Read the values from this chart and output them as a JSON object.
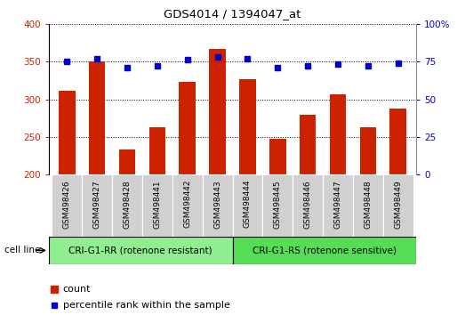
{
  "title": "GDS4014 / 1394047_at",
  "samples": [
    "GSM498426",
    "GSM498427",
    "GSM498428",
    "GSM498441",
    "GSM498442",
    "GSM498443",
    "GSM498444",
    "GSM498445",
    "GSM498446",
    "GSM498447",
    "GSM498448",
    "GSM498449"
  ],
  "counts": [
    311,
    350,
    234,
    263,
    323,
    367,
    326,
    248,
    279,
    306,
    263,
    288
  ],
  "percentiles": [
    75,
    77,
    71,
    72,
    76,
    78,
    77,
    71,
    72,
    73,
    72,
    74
  ],
  "group1_label": "CRI-G1-RR (rotenone resistant)",
  "group2_label": "CRI-G1-RS (rotenone sensitive)",
  "group1_count": 6,
  "group2_count": 6,
  "cell_line_label": "cell line",
  "legend_count_label": "count",
  "legend_pct_label": "percentile rank within the sample",
  "bar_color": "#cc2200",
  "dot_color": "#0000cc",
  "ylim_left": [
    200,
    400
  ],
  "ylim_right": [
    0,
    100
  ],
  "yticks_left": [
    200,
    250,
    300,
    350,
    400
  ],
  "yticks_right": [
    0,
    25,
    50,
    75,
    100
  ],
  "group1_bg": "#90ee90",
  "group2_bg": "#55dd55",
  "tick_area_bg": "#d0d0d0",
  "left_tick_color": "#cc2200",
  "right_tick_color": "#0000cc"
}
